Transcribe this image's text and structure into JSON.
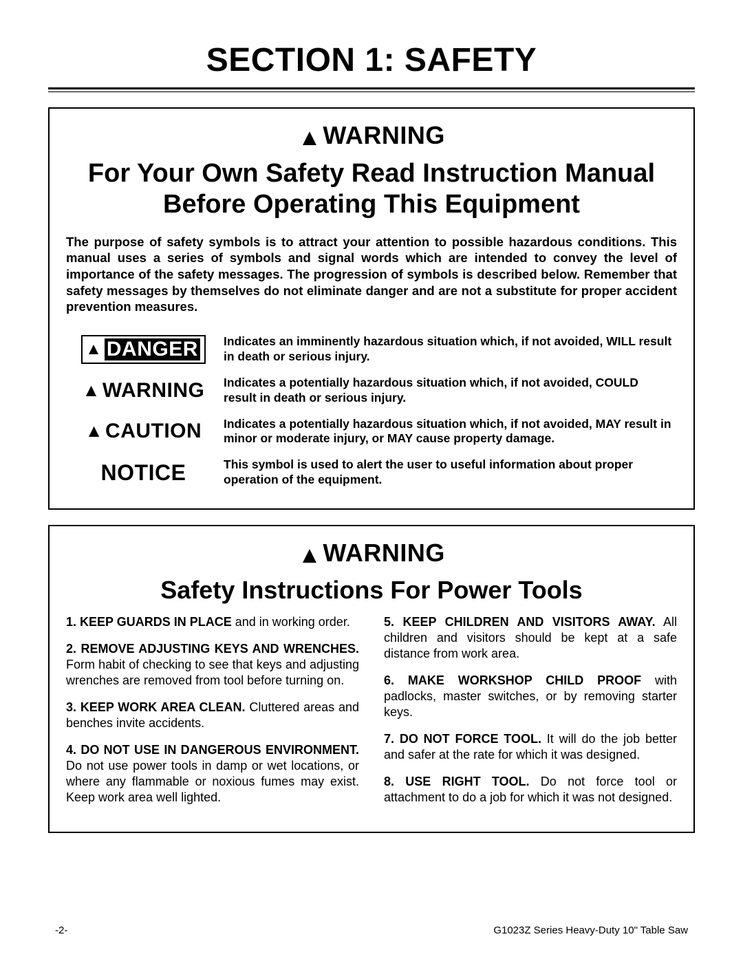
{
  "section_title": "SECTION 1: SAFETY",
  "warning_label": "WARNING",
  "box1": {
    "headline": "For Your Own Safety Read Instruction Manual Before Operating This Equipment",
    "intro": "The purpose of safety symbols is to attract your attention to possible hazardous conditions. This manual uses a series of symbols and signal words which are intended to convey the level of importance of the safety messages. The progression of symbols is described below. Remember that safety messages by themselves do not eliminate danger and are not a substitute for proper accident prevention measures.",
    "defs": [
      {
        "label": "DANGER",
        "kind": "danger",
        "text": "Indicates an imminently hazardous situation which, if not avoided, WILL result in death or serious injury."
      },
      {
        "label": "WARNING",
        "kind": "warning",
        "text": "Indicates a potentially hazardous situation which, if not avoided, COULD result in death or serious injury."
      },
      {
        "label": "CAUTION",
        "kind": "caution",
        "text": "Indicates a potentially hazardous situation which, if not avoided, MAY result in minor or moderate injury, or MAY cause property damage."
      },
      {
        "label": "NOTICE",
        "kind": "notice",
        "text": "This symbol is used to alert the user to useful information about proper operation of the equipment."
      }
    ]
  },
  "box2": {
    "headline": "Safety Instructions For Power Tools",
    "left": [
      {
        "n": "1.",
        "lead": "KEEP GUARDS IN PLACE",
        "rest": " and in working order."
      },
      {
        "n": "2.",
        "lead": "REMOVE ADJUSTING KEYS AND WRENCHES.",
        "rest": " Form habit of checking to see that keys and adjusting wrenches are removed from tool before turning on."
      },
      {
        "n": "3.",
        "lead": "KEEP WORK AREA CLEAN.",
        "rest": " Cluttered areas and benches invite accidents."
      },
      {
        "n": "4.",
        "lead": "DO NOT USE IN DANGEROUS ENVIRONMENT.",
        "rest": " Do not use power tools in damp or wet locations, or where any flammable or noxious fumes may exist. Keep work area well lighted."
      }
    ],
    "right": [
      {
        "n": "5.",
        "lead": "KEEP CHILDREN AND VISITORS AWAY.",
        "rest": " All children and visitors should be kept at a safe distance from work area."
      },
      {
        "n": "6.",
        "lead": "MAKE WORKSHOP CHILD PROOF",
        "rest": " with padlocks, master switches, or by removing starter keys."
      },
      {
        "n": "7.",
        "lead": "DO NOT FORCE TOOL.",
        "rest": " It will do the job better and safer at the rate for which it was designed."
      },
      {
        "n": "8.",
        "lead": "USE RIGHT TOOL.",
        "rest": " Do not force tool or attachment to do a job for which it was not designed."
      }
    ]
  },
  "footer": {
    "page": "-2-",
    "doc": "G1023Z Series Heavy-Duty 10\" Table Saw"
  }
}
